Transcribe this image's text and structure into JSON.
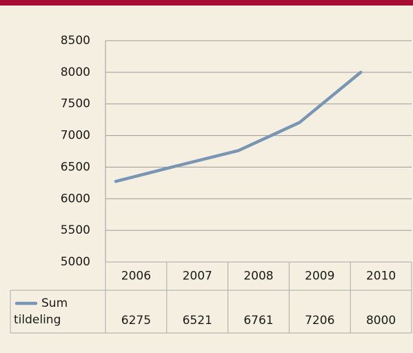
{
  "chart_data": {
    "type": "line",
    "categories": [
      "2006",
      "2007",
      "2008",
      "2009",
      "2010"
    ],
    "series": [
      {
        "name": "Sum tildeling",
        "color": "#7896b4",
        "values": [
          6275,
          6521,
          6761,
          7206,
          8000
        ]
      }
    ],
    "ylim": [
      5000,
      8500
    ],
    "yticks": [
      5000,
      5500,
      6000,
      6500,
      7000,
      7500,
      8000,
      8500
    ],
    "grid": true,
    "data_table": true
  }
}
